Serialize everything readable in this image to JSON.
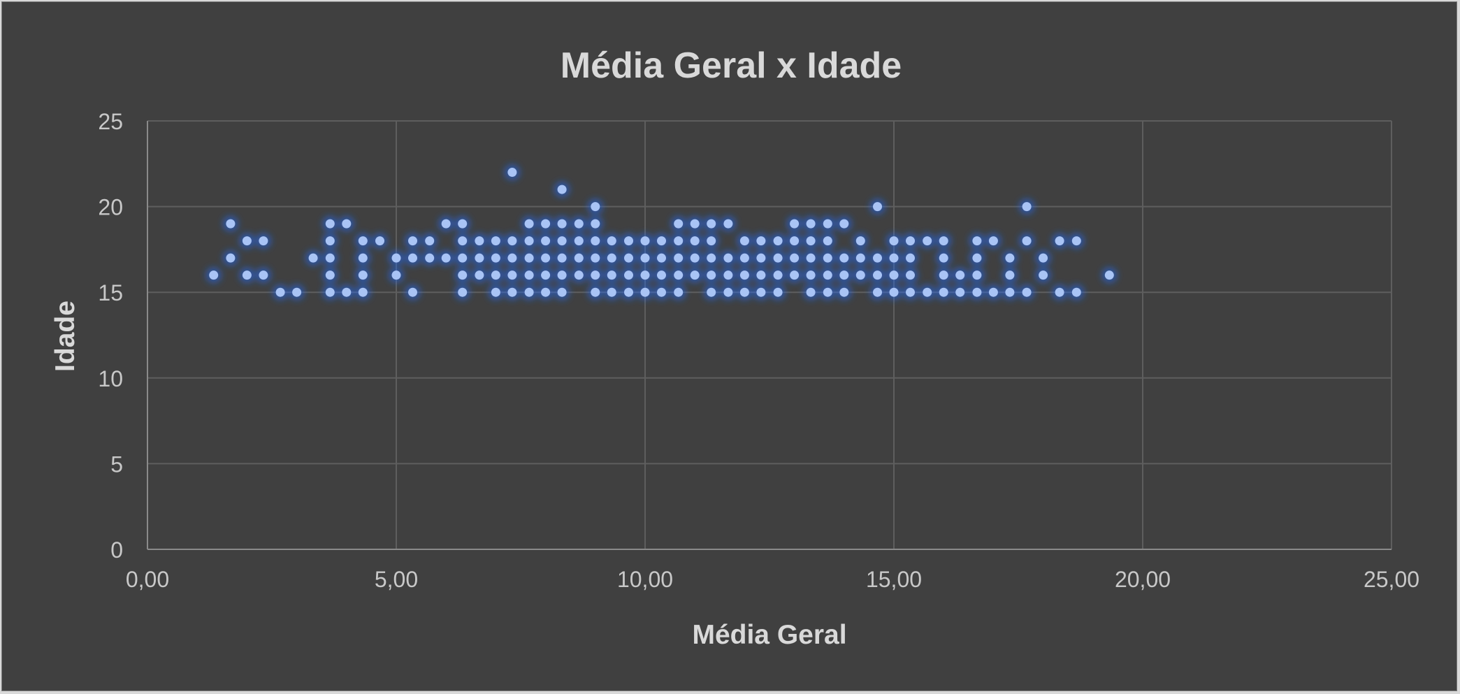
{
  "chart_data": {
    "type": "scatter",
    "title": "Média Geral x Idade",
    "xlabel": "Média Geral",
    "ylabel": "Idade",
    "xlim": [
      0,
      25
    ],
    "ylim": [
      0,
      25
    ],
    "x_ticks": [
      "0,00",
      "5,00",
      "10,00",
      "15,00",
      "20,00",
      "25,00"
    ],
    "y_ticks": [
      "0",
      "5",
      "10",
      "15",
      "20",
      "25"
    ],
    "grid": true,
    "legend": "none",
    "colors": {
      "background": "#404040",
      "point": "#a9c4f5",
      "glow": "#1f6bff",
      "grid": "#5e5e5e",
      "text": "#d9d9d9"
    },
    "points": [
      [
        1.33,
        16
      ],
      [
        1.67,
        19
      ],
      [
        1.67,
        17
      ],
      [
        2.0,
        18
      ],
      [
        2.0,
        16
      ],
      [
        2.33,
        18
      ],
      [
        2.33,
        16
      ],
      [
        2.67,
        15
      ],
      [
        3.0,
        15
      ],
      [
        3.33,
        17
      ],
      [
        3.67,
        19
      ],
      [
        3.67,
        18
      ],
      [
        3.67,
        17
      ],
      [
        3.67,
        16
      ],
      [
        3.67,
        15
      ],
      [
        4.0,
        19
      ],
      [
        4.0,
        15
      ],
      [
        4.33,
        18
      ],
      [
        4.33,
        17
      ],
      [
        4.33,
        16
      ],
      [
        4.33,
        15
      ],
      [
        4.67,
        18
      ],
      [
        5.0,
        17
      ],
      [
        5.0,
        16
      ],
      [
        5.33,
        18
      ],
      [
        5.33,
        17
      ],
      [
        5.33,
        15
      ],
      [
        5.67,
        18
      ],
      [
        5.67,
        17
      ],
      [
        6.0,
        19
      ],
      [
        6.0,
        17
      ],
      [
        6.33,
        19
      ],
      [
        6.33,
        18
      ],
      [
        6.33,
        17
      ],
      [
        6.33,
        16
      ],
      [
        6.33,
        15
      ],
      [
        6.67,
        18
      ],
      [
        6.67,
        17
      ],
      [
        6.67,
        16
      ],
      [
        7.0,
        18
      ],
      [
        7.0,
        17
      ],
      [
        7.0,
        16
      ],
      [
        7.0,
        15
      ],
      [
        7.33,
        22
      ],
      [
        7.33,
        18
      ],
      [
        7.33,
        17
      ],
      [
        7.33,
        16
      ],
      [
        7.33,
        15
      ],
      [
        7.67,
        19
      ],
      [
        7.67,
        18
      ],
      [
        7.67,
        17
      ],
      [
        7.67,
        16
      ],
      [
        7.67,
        15
      ],
      [
        8.0,
        19
      ],
      [
        8.0,
        18
      ],
      [
        8.0,
        17
      ],
      [
        8.0,
        16
      ],
      [
        8.0,
        15
      ],
      [
        8.33,
        21
      ],
      [
        8.33,
        19
      ],
      [
        8.33,
        18
      ],
      [
        8.33,
        17
      ],
      [
        8.33,
        16
      ],
      [
        8.33,
        15
      ],
      [
        8.67,
        19
      ],
      [
        8.67,
        18
      ],
      [
        8.67,
        17
      ],
      [
        8.67,
        16
      ],
      [
        9.0,
        20
      ],
      [
        9.0,
        19
      ],
      [
        9.0,
        18
      ],
      [
        9.0,
        17
      ],
      [
        9.0,
        16
      ],
      [
        9.0,
        15
      ],
      [
        9.33,
        18
      ],
      [
        9.33,
        17
      ],
      [
        9.33,
        16
      ],
      [
        9.33,
        15
      ],
      [
        9.67,
        18
      ],
      [
        9.67,
        17
      ],
      [
        9.67,
        16
      ],
      [
        9.67,
        15
      ],
      [
        10.0,
        18
      ],
      [
        10.0,
        17
      ],
      [
        10.0,
        16
      ],
      [
        10.0,
        15
      ],
      [
        10.33,
        18
      ],
      [
        10.33,
        17
      ],
      [
        10.33,
        16
      ],
      [
        10.33,
        15
      ],
      [
        10.67,
        19
      ],
      [
        10.67,
        18
      ],
      [
        10.67,
        17
      ],
      [
        10.67,
        16
      ],
      [
        10.67,
        15
      ],
      [
        11.0,
        19
      ],
      [
        11.0,
        18
      ],
      [
        11.0,
        17
      ],
      [
        11.0,
        16
      ],
      [
        11.33,
        19
      ],
      [
        11.33,
        18
      ],
      [
        11.33,
        17
      ],
      [
        11.33,
        16
      ],
      [
        11.33,
        15
      ],
      [
        11.67,
        19
      ],
      [
        11.67,
        17
      ],
      [
        11.67,
        16
      ],
      [
        11.67,
        15
      ],
      [
        12.0,
        18
      ],
      [
        12.0,
        17
      ],
      [
        12.0,
        16
      ],
      [
        12.0,
        15
      ],
      [
        12.33,
        18
      ],
      [
        12.33,
        17
      ],
      [
        12.33,
        16
      ],
      [
        12.33,
        15
      ],
      [
        12.67,
        18
      ],
      [
        12.67,
        17
      ],
      [
        12.67,
        16
      ],
      [
        12.67,
        15
      ],
      [
        13.0,
        19
      ],
      [
        13.0,
        18
      ],
      [
        13.0,
        17
      ],
      [
        13.0,
        16
      ],
      [
        13.33,
        19
      ],
      [
        13.33,
        18
      ],
      [
        13.33,
        17
      ],
      [
        13.33,
        16
      ],
      [
        13.33,
        15
      ],
      [
        13.67,
        19
      ],
      [
        13.67,
        18
      ],
      [
        13.67,
        17
      ],
      [
        13.67,
        16
      ],
      [
        13.67,
        15
      ],
      [
        14.0,
        19
      ],
      [
        14.0,
        17
      ],
      [
        14.0,
        16
      ],
      [
        14.0,
        15
      ],
      [
        14.33,
        18
      ],
      [
        14.33,
        17
      ],
      [
        14.33,
        16
      ],
      [
        14.67,
        20
      ],
      [
        14.67,
        17
      ],
      [
        14.67,
        16
      ],
      [
        14.67,
        15
      ],
      [
        15.0,
        18
      ],
      [
        15.0,
        17
      ],
      [
        15.0,
        16
      ],
      [
        15.0,
        15
      ],
      [
        15.33,
        18
      ],
      [
        15.33,
        17
      ],
      [
        15.33,
        16
      ],
      [
        15.33,
        15
      ],
      [
        15.67,
        18
      ],
      [
        15.67,
        15
      ],
      [
        16.0,
        18
      ],
      [
        16.0,
        17
      ],
      [
        16.0,
        16
      ],
      [
        16.0,
        15
      ],
      [
        16.33,
        16
      ],
      [
        16.33,
        15
      ],
      [
        16.67,
        18
      ],
      [
        16.67,
        17
      ],
      [
        16.67,
        16
      ],
      [
        16.67,
        15
      ],
      [
        17.0,
        18
      ],
      [
        17.0,
        15
      ],
      [
        17.33,
        17
      ],
      [
        17.33,
        16
      ],
      [
        17.33,
        15
      ],
      [
        17.67,
        20
      ],
      [
        17.67,
        18
      ],
      [
        17.67,
        15
      ],
      [
        18.0,
        17
      ],
      [
        18.0,
        16
      ],
      [
        18.33,
        18
      ],
      [
        18.33,
        15
      ],
      [
        18.67,
        18
      ],
      [
        18.67,
        15
      ],
      [
        19.33,
        16
      ]
    ]
  }
}
